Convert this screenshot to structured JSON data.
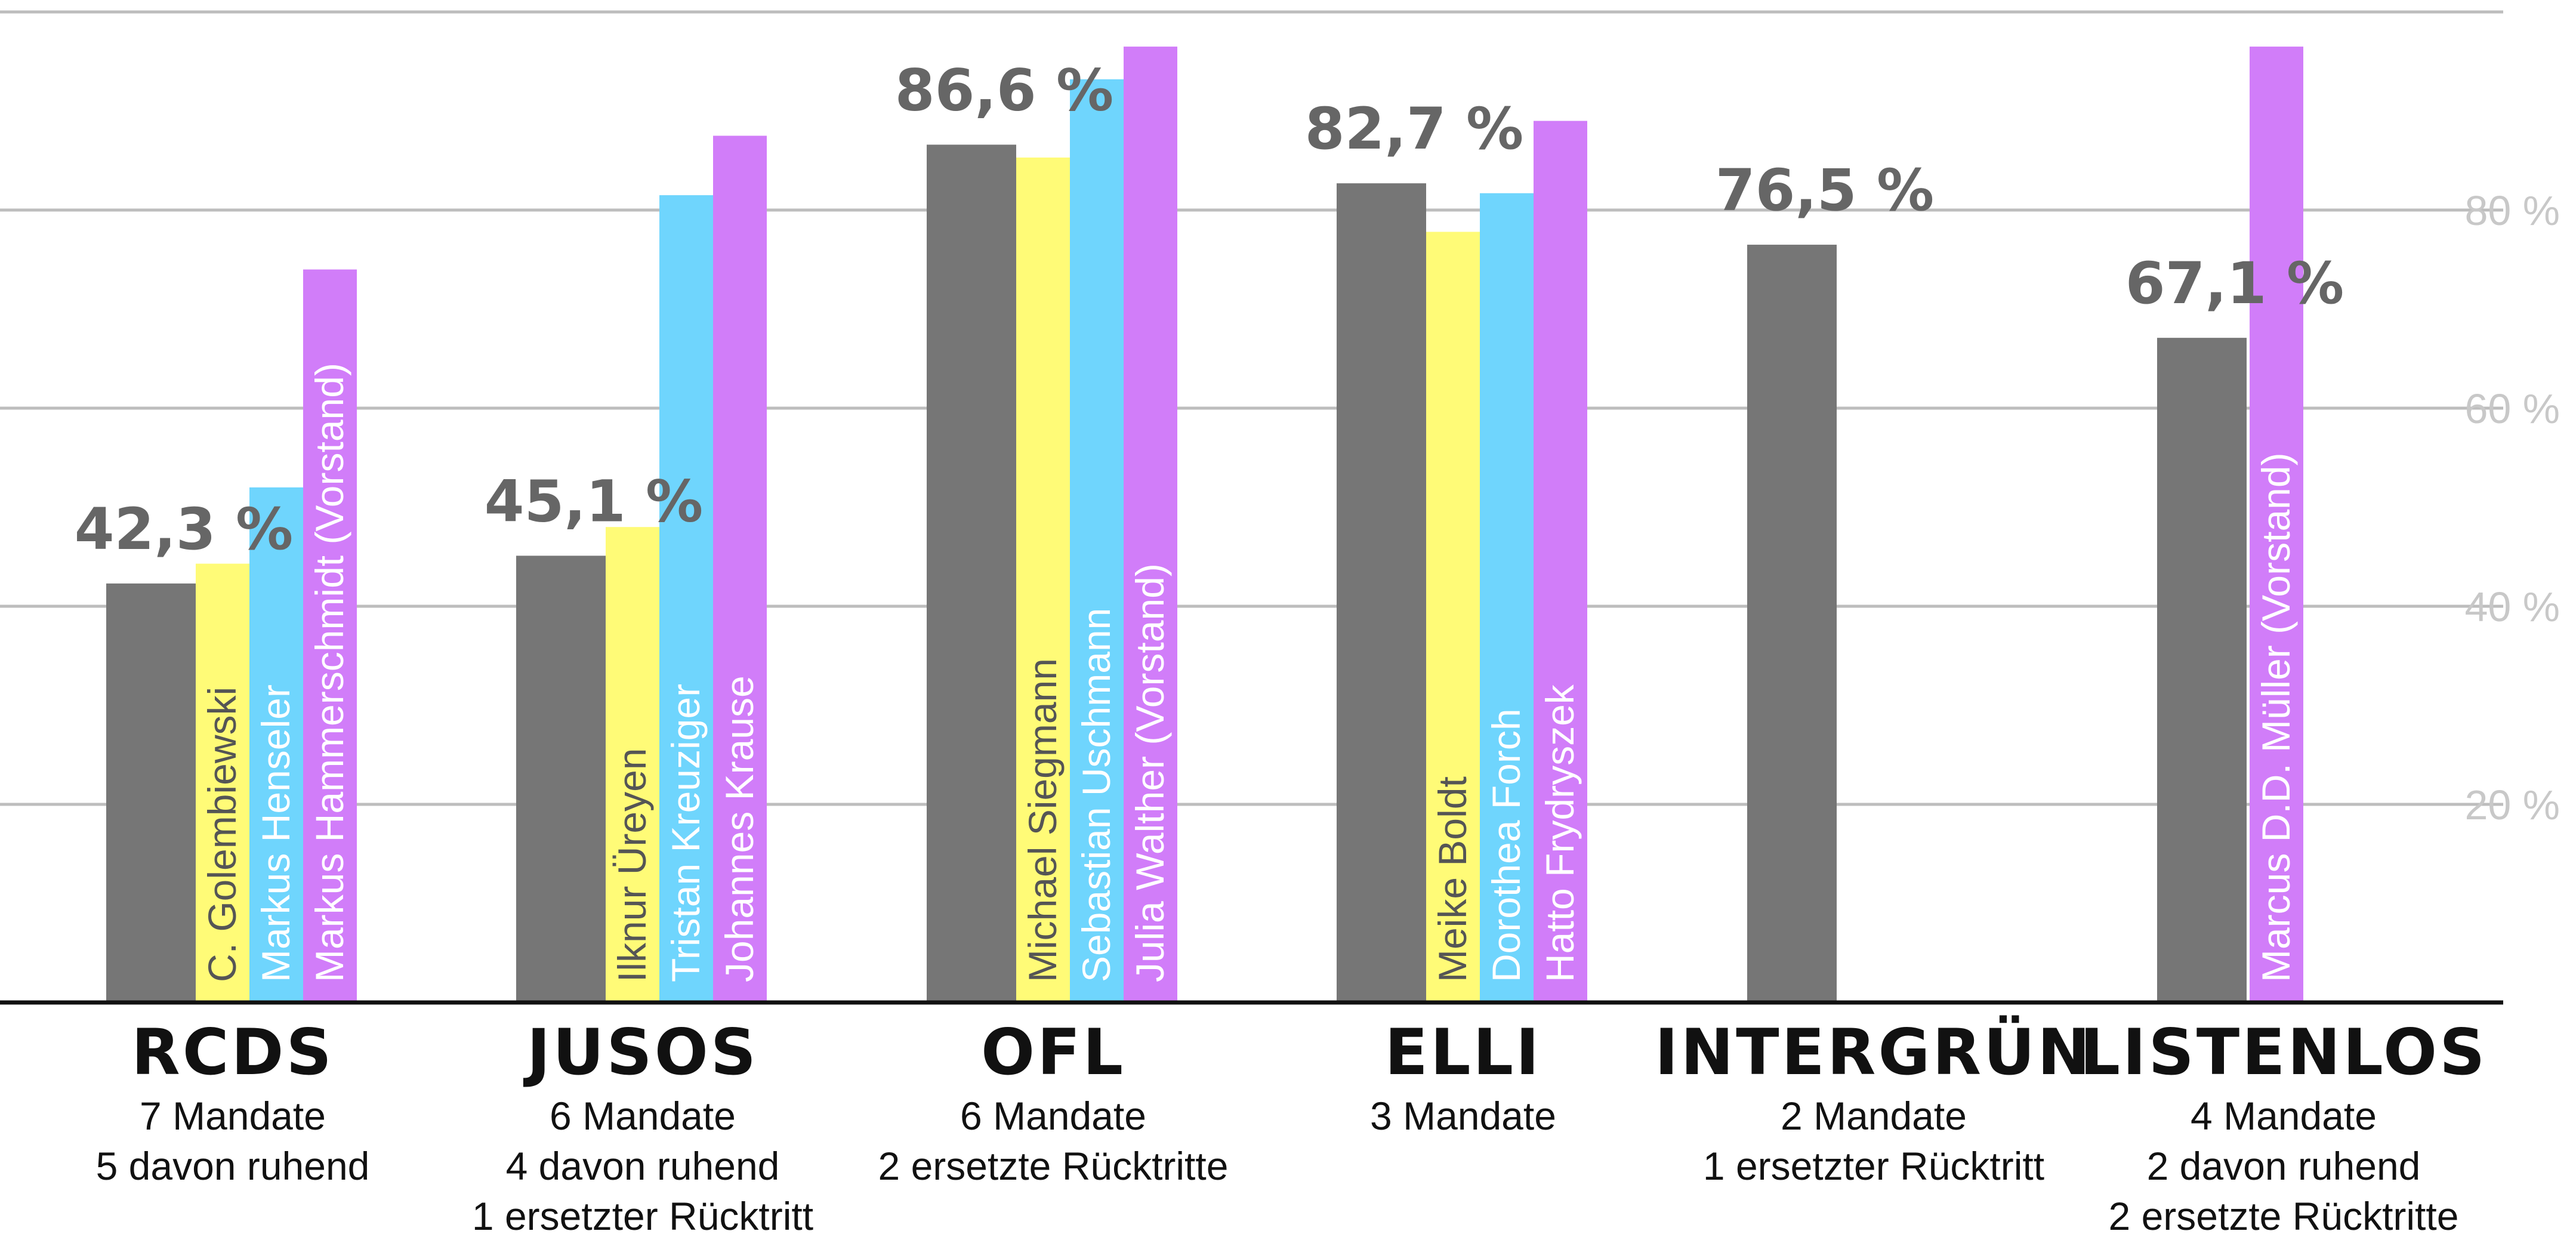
{
  "chart_data": {
    "type": "bar",
    "ylim": [
      0,
      100
    ],
    "yticks": [
      {
        "value": 20,
        "label": "20 %"
      },
      {
        "value": 40,
        "label": "40 %"
      },
      {
        "value": 60,
        "label": "60 %"
      },
      {
        "value": 80,
        "label": "80 %"
      }
    ],
    "grid": true,
    "colors": {
      "group": "#767676",
      "yellow": "#fffb77",
      "cyan": "#6fd5fd",
      "purple": "#d17df9",
      "tick": "#c8c8c8",
      "person_dark": "#555555",
      "person_light": "#ffffff"
    },
    "groups": [
      {
        "name": "RCDS",
        "value": 42.3,
        "value_label": "42,3 %",
        "sub_lines": [
          "7 Mandate",
          "5 davon ruhend"
        ],
        "members": [
          {
            "name": "C. Golembiewski",
            "value": 44.3,
            "color": "yellow"
          },
          {
            "name": "Markus Henseler",
            "value": 52.0,
            "color": "cyan"
          },
          {
            "name": "Markus Hammerschmidt (Vorstand)",
            "value": 74.0,
            "color": "purple"
          }
        ]
      },
      {
        "name": "JUSOS",
        "value": 45.1,
        "value_label": "45,1 %",
        "sub_lines": [
          "6 Mandate",
          "4 davon ruhend",
          "1 ersetzter Rücktritt"
        ],
        "members": [
          {
            "name": "Ilknur Üreyen",
            "value": 48.0,
            "color": "yellow"
          },
          {
            "name": "Tristan Kreuziger",
            "value": 81.5,
            "color": "cyan"
          },
          {
            "name": "Johannes Krause",
            "value": 87.5,
            "color": "purple"
          }
        ]
      },
      {
        "name": "OFL",
        "value": 86.6,
        "value_label": "86,6 %",
        "sub_lines": [
          "6 Mandate",
          "2 ersetzte Rücktritte"
        ],
        "members": [
          {
            "name": "Michael Siegmann",
            "value": 85.3,
            "color": "yellow"
          },
          {
            "name": "Sebastian Uschmann",
            "value": 93.2,
            "color": "cyan"
          },
          {
            "name": "Julia Walther (Vorstand)",
            "value": 96.5,
            "color": "purple"
          }
        ]
      },
      {
        "name": "ELLI",
        "value": 82.7,
        "value_label": "82,7 %",
        "sub_lines": [
          "3 Mandate"
        ],
        "members": [
          {
            "name": "Meike Boldt",
            "value": 77.8,
            "color": "yellow"
          },
          {
            "name": "Dorothea Forch",
            "value": 81.7,
            "color": "cyan"
          },
          {
            "name": "Hatto Frydryszek",
            "value": 89.0,
            "color": "purple"
          }
        ]
      },
      {
        "name": "INTERGRÜN",
        "value": 76.5,
        "value_label": "76,5 %",
        "sub_lines": [
          "2 Mandate",
          "1 ersetzter Rücktritt"
        ],
        "members": []
      },
      {
        "name": "LISTENLOS",
        "value": 67.1,
        "value_label": "67,1 %",
        "sub_lines": [
          "4 Mandate",
          "2 davon ruhend",
          "2 ersetzte Rücktritte"
        ],
        "members": [
          {
            "name": "Marcus D.D. Müller (Vorstand)",
            "value": 96.5,
            "color": "purple"
          }
        ]
      }
    ]
  }
}
